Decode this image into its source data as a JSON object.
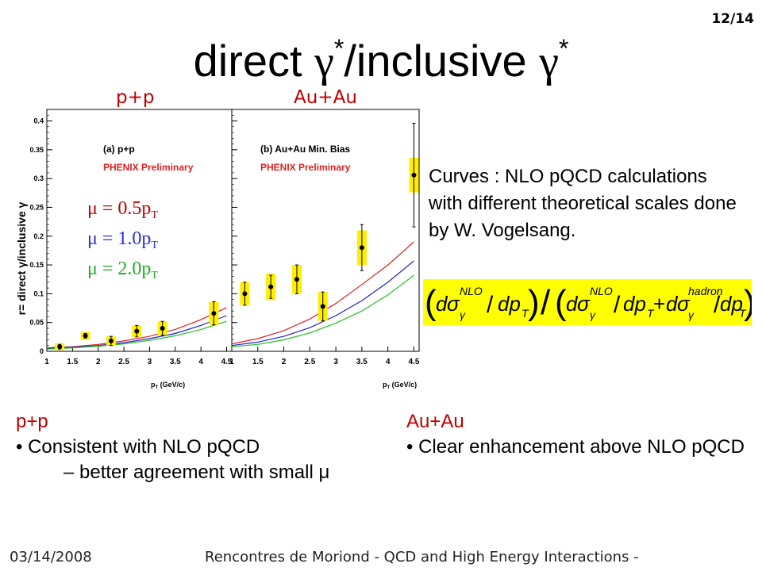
{
  "slide": {
    "page_number": "12/14",
    "title_prefix": "direct ",
    "title_gamma1": "γ",
    "title_star1": "*",
    "title_middle": "/inclusive ",
    "title_gamma2": "γ",
    "title_star2": "*"
  },
  "panels": {
    "left_label": "p+p",
    "right_label": "Au+Au"
  },
  "plot": {
    "y_axis_label": "r= direct γ/inclusive γ",
    "x_axis_label": "p",
    "x_axis_sub": "T",
    "x_axis_unit": " (GeV/c)",
    "left_panel_title": "(a) p+p",
    "right_panel_title": "(b) Au+Au Min. Bias",
    "preliminary": "PHENIX Preliminary",
    "y_ticks": [
      "0",
      "0.05",
      "0.1",
      "0.15",
      "0.2",
      "0.25",
      "0.3",
      "0.35",
      "0.4"
    ],
    "x_ticks_left": [
      "1",
      "1.5",
      "2",
      "2.5",
      "3",
      "3.5",
      "4",
      "4.5"
    ],
    "x_ticks_right": [
      "1",
      "1.5",
      "2",
      "2.5",
      "3",
      "3.5",
      "4",
      "4.5"
    ],
    "scale_labels": [
      {
        "text": "μ = 0.5p",
        "sub": "T",
        "color": "#c00000"
      },
      {
        "text": "μ = 1.0p",
        "sub": "T",
        "color": "#2e2ed6"
      },
      {
        "text": "μ = 2.0p",
        "sub": "T",
        "color": "#22aa22"
      }
    ],
    "colors": {
      "red": "#e02020",
      "blue": "#2020d0",
      "green": "#20c020",
      "box": "#ffee00"
    }
  },
  "chart_data": [
    {
      "type": "scatter",
      "title": "(a) p+p",
      "xlabel": "pT (GeV/c)",
      "ylabel": "r= direct γ/inclusive γ",
      "xlim": [
        1,
        4.6
      ],
      "ylim": [
        0,
        0.42
      ],
      "series": [
        {
          "name": "PHENIX Preliminary",
          "x": [
            1.25,
            1.75,
            2.25,
            2.75,
            3.25,
            4.25
          ],
          "y": [
            0.008,
            0.027,
            0.018,
            0.035,
            0.04,
            0.066
          ],
          "yerr": [
            0.004,
            0.004,
            0.008,
            0.01,
            0.012,
            0.02
          ],
          "syserr": [
            0.006,
            0.007,
            0.008,
            0.01,
            0.012,
            0.02
          ]
        },
        {
          "name": "μ = 0.5pT",
          "x": [
            1,
            1.5,
            2,
            2.5,
            3,
            3.5,
            4,
            4.5
          ],
          "y": [
            0.006,
            0.008,
            0.012,
            0.018,
            0.026,
            0.038,
            0.055,
            0.076
          ]
        },
        {
          "name": "μ = 1.0pT",
          "x": [
            1,
            1.5,
            2,
            2.5,
            3,
            3.5,
            4,
            4.5
          ],
          "y": [
            0.005,
            0.007,
            0.01,
            0.015,
            0.022,
            0.031,
            0.045,
            0.062
          ]
        },
        {
          "name": "μ = 2.0pT",
          "x": [
            1,
            1.5,
            2,
            2.5,
            3,
            3.5,
            4,
            4.5
          ],
          "y": [
            0.004,
            0.006,
            0.009,
            0.013,
            0.019,
            0.027,
            0.038,
            0.052
          ]
        }
      ]
    },
    {
      "type": "scatter",
      "title": "(b) Au+Au Min. Bias",
      "xlabel": "pT (GeV/c)",
      "ylabel": "r= direct γ/inclusive γ",
      "xlim": [
        1,
        4.6
      ],
      "ylim": [
        0,
        0.42
      ],
      "series": [
        {
          "name": "PHENIX Preliminary",
          "x": [
            1.25,
            1.75,
            2.25,
            2.75,
            3.5,
            4.5
          ],
          "y": [
            0.1,
            0.112,
            0.125,
            0.078,
            0.18,
            0.306
          ],
          "yerr": [
            0.02,
            0.02,
            0.025,
            0.025,
            0.04,
            0.09
          ],
          "syserr": [
            0.02,
            0.023,
            0.025,
            0.025,
            0.03,
            0.03
          ]
        },
        {
          "name": "μ = 0.5pT",
          "x": [
            1,
            1.5,
            2,
            2.5,
            3,
            3.5,
            4,
            4.5
          ],
          "y": [
            0.013,
            0.022,
            0.036,
            0.056,
            0.083,
            0.116,
            0.15,
            0.19
          ]
        },
        {
          "name": "μ = 1.0pT",
          "x": [
            1,
            1.5,
            2,
            2.5,
            3,
            3.5,
            4,
            4.5
          ],
          "y": [
            0.01,
            0.016,
            0.026,
            0.041,
            0.062,
            0.088,
            0.12,
            0.157
          ]
        },
        {
          "name": "μ = 2.0pT",
          "x": [
            1,
            1.5,
            2,
            2.5,
            3,
            3.5,
            4,
            4.5
          ],
          "y": [
            0.008,
            0.012,
            0.02,
            0.032,
            0.049,
            0.07,
            0.098,
            0.132
          ]
        }
      ]
    }
  ],
  "curves_note": "Curves : NLO pQCD calculations with different theoretical scales done by W. Vogelsang.",
  "formula": {
    "sigma": "σ",
    "gamma": "γ",
    "nlo": "NLO",
    "hadron": "hadron",
    "d": "d",
    "dp": "dp",
    "T": "T",
    "plus": "+",
    "slash": "/"
  },
  "summary_left": {
    "heading": "p+p",
    "bullet": "• Consistent with NLO pQCD",
    "sub": "– better agreement with small μ"
  },
  "summary_right": {
    "heading": "Au+Au",
    "bullet": "• Clear enhancement above NLO pQCD"
  },
  "footer": {
    "date": "03/14/2008",
    "conference": "Rencontres de Moriond - QCD and High Energy Interactions -"
  }
}
